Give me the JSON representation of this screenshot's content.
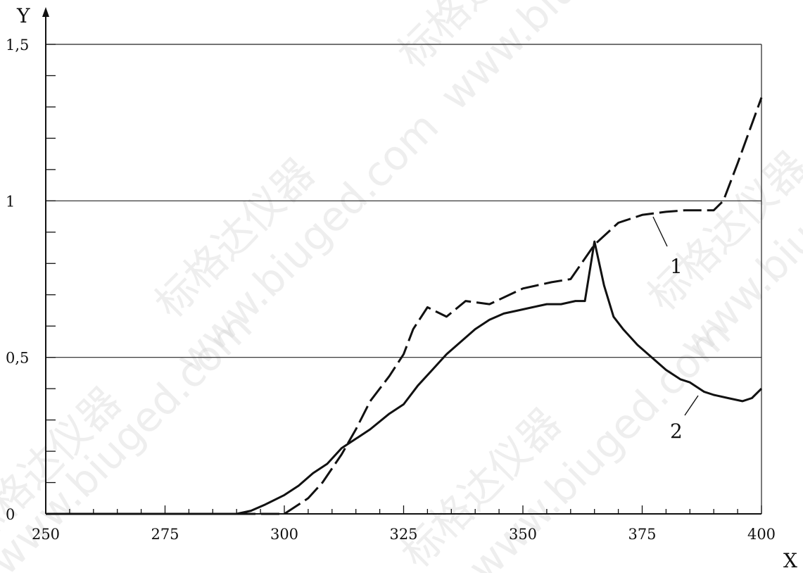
{
  "chart_data": {
    "type": "line",
    "title": "",
    "xlabel": "X",
    "ylabel": "Y",
    "xlim": [
      250,
      400
    ],
    "ylim": [
      0,
      1.5
    ],
    "x_ticks": [
      250,
      275,
      300,
      325,
      350,
      375,
      400
    ],
    "x_tick_labels": [
      "250",
      "275",
      "300",
      "325",
      "350",
      "375",
      "400"
    ],
    "y_ticks": [
      0,
      0.5,
      1,
      1.5
    ],
    "y_tick_labels": [
      "0",
      "0,5",
      "1",
      "1,5"
    ],
    "grid": "horizontal at 0.5, 1, 1.5",
    "legend": "none (curves labelled directly)",
    "series": [
      {
        "name": "1",
        "style": "dashed",
        "x": [
          250,
          290,
          300,
          305,
          308,
          312,
          315,
          318,
          322,
          325,
          327,
          330,
          334,
          338,
          343,
          350,
          356,
          360,
          365,
          370,
          372,
          375,
          380,
          384,
          387,
          390,
          392,
          395,
          400
        ],
        "y": [
          0,
          0,
          0,
          0.05,
          0.1,
          0.19,
          0.27,
          0.36,
          0.44,
          0.51,
          0.59,
          0.66,
          0.63,
          0.68,
          0.67,
          0.72,
          0.74,
          0.75,
          0.86,
          0.93,
          0.94,
          0.955,
          0.965,
          0.97,
          0.97,
          0.97,
          1.0,
          1.12,
          1.33
        ]
      },
      {
        "name": "2",
        "style": "solid",
        "x": [
          250,
          290,
          293,
          296,
          300,
          303,
          306,
          309,
          312,
          315,
          318,
          322,
          325,
          328,
          331,
          334,
          337,
          340,
          343,
          346,
          349,
          352,
          355,
          358,
          361,
          363,
          365,
          367,
          369,
          371,
          374,
          377,
          380,
          383,
          385,
          388,
          390,
          393,
          396,
          398,
          400
        ],
        "y": [
          0,
          0,
          0.01,
          0.03,
          0.06,
          0.09,
          0.13,
          0.16,
          0.21,
          0.24,
          0.27,
          0.32,
          0.35,
          0.41,
          0.46,
          0.51,
          0.55,
          0.59,
          0.62,
          0.64,
          0.65,
          0.66,
          0.67,
          0.67,
          0.68,
          0.68,
          0.87,
          0.73,
          0.63,
          0.59,
          0.54,
          0.5,
          0.46,
          0.43,
          0.42,
          0.39,
          0.38,
          0.37,
          0.36,
          0.37,
          0.4
        ]
      }
    ],
    "annotations": [
      {
        "text": "1",
        "series": "1"
      },
      {
        "text": "2",
        "series": "2"
      }
    ]
  },
  "watermark": {
    "text_cn": "标格达仪器",
    "text_url": "www.biuged.com"
  }
}
